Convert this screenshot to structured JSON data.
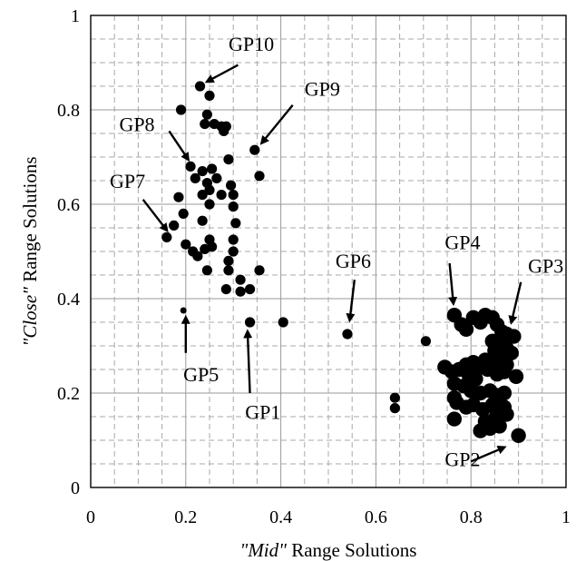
{
  "chart_data": {
    "type": "scatter",
    "title": "",
    "xlabel_italic": "\"Mid\"",
    "xlabel_rest": " Range Solutions",
    "ylabel_italic": "\"Close\"",
    "ylabel_rest": " Range Solutions",
    "xlim": [
      0,
      1
    ],
    "ylim": [
      0,
      1
    ],
    "grid": true,
    "x_ticks": [
      "0",
      "0.2",
      "0.4",
      "0.6",
      "0.8",
      "1"
    ],
    "y_ticks": [
      "0",
      "0.2",
      "0.4",
      "0.6",
      "0.8",
      "1"
    ],
    "points_small": [
      {
        "x": 0.195,
        "y": 0.375
      }
    ],
    "points_medium": [
      {
        "x": 0.23,
        "y": 0.85
      },
      {
        "x": 0.25,
        "y": 0.83
      },
      {
        "x": 0.19,
        "y": 0.8
      },
      {
        "x": 0.245,
        "y": 0.79
      },
      {
        "x": 0.24,
        "y": 0.77
      },
      {
        "x": 0.26,
        "y": 0.77
      },
      {
        "x": 0.275,
        "y": 0.765
      },
      {
        "x": 0.285,
        "y": 0.765
      },
      {
        "x": 0.28,
        "y": 0.755
      },
      {
        "x": 0.345,
        "y": 0.715
      },
      {
        "x": 0.29,
        "y": 0.695
      },
      {
        "x": 0.355,
        "y": 0.66
      },
      {
        "x": 0.21,
        "y": 0.68
      },
      {
        "x": 0.235,
        "y": 0.67
      },
      {
        "x": 0.255,
        "y": 0.675
      },
      {
        "x": 0.22,
        "y": 0.655
      },
      {
        "x": 0.265,
        "y": 0.655
      },
      {
        "x": 0.245,
        "y": 0.645
      },
      {
        "x": 0.295,
        "y": 0.64
      },
      {
        "x": 0.25,
        "y": 0.63
      },
      {
        "x": 0.235,
        "y": 0.62
      },
      {
        "x": 0.275,
        "y": 0.62
      },
      {
        "x": 0.3,
        "y": 0.62
      },
      {
        "x": 0.185,
        "y": 0.615
      },
      {
        "x": 0.25,
        "y": 0.6
      },
      {
        "x": 0.3,
        "y": 0.595
      },
      {
        "x": 0.195,
        "y": 0.58
      },
      {
        "x": 0.235,
        "y": 0.565
      },
      {
        "x": 0.305,
        "y": 0.56
      },
      {
        "x": 0.175,
        "y": 0.555
      },
      {
        "x": 0.16,
        "y": 0.53
      },
      {
        "x": 0.25,
        "y": 0.525
      },
      {
        "x": 0.255,
        "y": 0.51
      },
      {
        "x": 0.2,
        "y": 0.515
      },
      {
        "x": 0.3,
        "y": 0.525
      },
      {
        "x": 0.215,
        "y": 0.5
      },
      {
        "x": 0.24,
        "y": 0.505
      },
      {
        "x": 0.225,
        "y": 0.49
      },
      {
        "x": 0.29,
        "y": 0.48
      },
      {
        "x": 0.3,
        "y": 0.5
      },
      {
        "x": 0.29,
        "y": 0.46
      },
      {
        "x": 0.245,
        "y": 0.46
      },
      {
        "x": 0.355,
        "y": 0.46
      },
      {
        "x": 0.315,
        "y": 0.44
      },
      {
        "x": 0.285,
        "y": 0.42
      },
      {
        "x": 0.315,
        "y": 0.415
      },
      {
        "x": 0.335,
        "y": 0.42
      },
      {
        "x": 0.335,
        "y": 0.35
      },
      {
        "x": 0.405,
        "y": 0.35
      },
      {
        "x": 0.54,
        "y": 0.325
      },
      {
        "x": 0.705,
        "y": 0.31
      },
      {
        "x": 0.64,
        "y": 0.19
      },
      {
        "x": 0.64,
        "y": 0.168
      }
    ],
    "points_large": [
      {
        "x": 0.765,
        "y": 0.365
      },
      {
        "x": 0.78,
        "y": 0.345
      },
      {
        "x": 0.79,
        "y": 0.335
      },
      {
        "x": 0.805,
        "y": 0.36
      },
      {
        "x": 0.82,
        "y": 0.35
      },
      {
        "x": 0.83,
        "y": 0.365
      },
      {
        "x": 0.845,
        "y": 0.36
      },
      {
        "x": 0.855,
        "y": 0.345
      },
      {
        "x": 0.865,
        "y": 0.33
      },
      {
        "x": 0.875,
        "y": 0.325
      },
      {
        "x": 0.89,
        "y": 0.32
      },
      {
        "x": 0.845,
        "y": 0.31
      },
      {
        "x": 0.86,
        "y": 0.305
      },
      {
        "x": 0.875,
        "y": 0.295
      },
      {
        "x": 0.85,
        "y": 0.29
      },
      {
        "x": 0.865,
        "y": 0.28
      },
      {
        "x": 0.885,
        "y": 0.285
      },
      {
        "x": 0.83,
        "y": 0.27
      },
      {
        "x": 0.845,
        "y": 0.265
      },
      {
        "x": 0.86,
        "y": 0.27
      },
      {
        "x": 0.875,
        "y": 0.26
      },
      {
        "x": 0.82,
        "y": 0.255
      },
      {
        "x": 0.835,
        "y": 0.25
      },
      {
        "x": 0.855,
        "y": 0.24
      },
      {
        "x": 0.87,
        "y": 0.245
      },
      {
        "x": 0.895,
        "y": 0.235
      },
      {
        "x": 0.745,
        "y": 0.255
      },
      {
        "x": 0.76,
        "y": 0.245
      },
      {
        "x": 0.775,
        "y": 0.25
      },
      {
        "x": 0.79,
        "y": 0.26
      },
      {
        "x": 0.805,
        "y": 0.265
      },
      {
        "x": 0.795,
        "y": 0.24
      },
      {
        "x": 0.81,
        "y": 0.23
      },
      {
        "x": 0.765,
        "y": 0.22
      },
      {
        "x": 0.785,
        "y": 0.215
      },
      {
        "x": 0.8,
        "y": 0.205
      },
      {
        "x": 0.82,
        "y": 0.2
      },
      {
        "x": 0.84,
        "y": 0.205
      },
      {
        "x": 0.855,
        "y": 0.195
      },
      {
        "x": 0.87,
        "y": 0.2
      },
      {
        "x": 0.765,
        "y": 0.19
      },
      {
        "x": 0.77,
        "y": 0.18
      },
      {
        "x": 0.79,
        "y": 0.17
      },
      {
        "x": 0.805,
        "y": 0.175
      },
      {
        "x": 0.825,
        "y": 0.165
      },
      {
        "x": 0.845,
        "y": 0.175
      },
      {
        "x": 0.86,
        "y": 0.18
      },
      {
        "x": 0.87,
        "y": 0.17
      },
      {
        "x": 0.855,
        "y": 0.16
      },
      {
        "x": 0.875,
        "y": 0.155
      },
      {
        "x": 0.765,
        "y": 0.145
      },
      {
        "x": 0.83,
        "y": 0.14
      },
      {
        "x": 0.85,
        "y": 0.145
      },
      {
        "x": 0.82,
        "y": 0.12
      },
      {
        "x": 0.84,
        "y": 0.125
      },
      {
        "x": 0.86,
        "y": 0.13
      },
      {
        "x": 0.9,
        "y": 0.11
      }
    ],
    "annotations": [
      {
        "label": "GP10",
        "text_x": 0.29,
        "text_y": 0.925,
        "tail": [
          0.31,
          0.895
        ],
        "head": [
          0.245,
          0.86
        ]
      },
      {
        "label": "GP9",
        "text_x": 0.45,
        "text_y": 0.83,
        "tail": [
          0.425,
          0.81
        ],
        "head": [
          0.36,
          0.73
        ]
      },
      {
        "label": "GP8",
        "text_x": 0.06,
        "text_y": 0.755,
        "tail": [
          0.165,
          0.755
        ],
        "head": [
          0.205,
          0.695
        ]
      },
      {
        "label": "GP7",
        "text_x": 0.04,
        "text_y": 0.635,
        "tail": [
          0.11,
          0.61
        ],
        "head": [
          0.16,
          0.545
        ]
      },
      {
        "label": "GP6",
        "text_x": 0.515,
        "text_y": 0.465,
        "tail": [
          0.555,
          0.44
        ],
        "head": [
          0.545,
          0.355
        ]
      },
      {
        "label": "GP5",
        "text_x": 0.195,
        "text_y": 0.225,
        "tail": [
          0.2,
          0.285
        ],
        "head": [
          0.2,
          0.36
        ]
      },
      {
        "label": "GP1",
        "text_x": 0.325,
        "text_y": 0.145,
        "tail": [
          0.335,
          0.2
        ],
        "head": [
          0.33,
          0.33
        ]
      },
      {
        "label": "GP4",
        "text_x": 0.745,
        "text_y": 0.505,
        "tail": [
          0.755,
          0.475
        ],
        "head": [
          0.763,
          0.39
        ]
      },
      {
        "label": "GP3",
        "text_x": 0.92,
        "text_y": 0.455,
        "tail": [
          0.905,
          0.435
        ],
        "head": [
          0.885,
          0.35
        ]
      },
      {
        "label": "GP2",
        "text_x": 0.745,
        "text_y": 0.045,
        "tail": [
          0.8,
          0.055
        ],
        "head": [
          0.87,
          0.085
        ]
      }
    ]
  }
}
